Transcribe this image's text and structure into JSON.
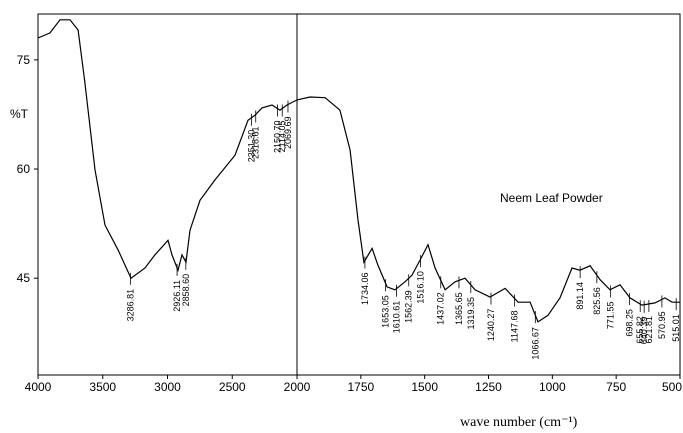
{
  "chart_data": {
    "type": "line",
    "title": "Neem Leaf Powder",
    "y_label": "%T",
    "x_label": "wave number (cm⁻¹)",
    "color": "#000000",
    "xlim": [
      4000,
      500
    ],
    "x_break": 2000,
    "ylim": [
      31.7,
      81.3
    ],
    "xticks": [
      4000,
      3500,
      3000,
      2500,
      2000,
      1750,
      1500,
      1250,
      1000,
      750,
      500
    ],
    "yticks": [
      45,
      60,
      75
    ],
    "x": [
      4000,
      3907,
      3830,
      3753,
      3690,
      3640,
      3560,
      3483,
      3382,
      3282,
      3174,
      3097,
      2996,
      2965,
      2919,
      2888,
      2857,
      2826,
      2749,
      2633,
      2479,
      2378,
      2324,
      2270,
      2193,
      2131,
      2077,
      2000,
      1949,
      1890,
      1832,
      1792,
      1761,
      1738,
      1706,
      1683,
      1647,
      1616,
      1577,
      1550,
      1518,
      1487,
      1459,
      1420,
      1381,
      1342,
      1303,
      1244,
      1185,
      1134,
      1087,
      1056,
      1017,
      970,
      923,
      892,
      852,
      813,
      774,
      735,
      696,
      649,
      598,
      559,
      531,
      500
    ],
    "values": [
      78.0,
      78.7,
      80.5,
      80.5,
      79.1,
      72.2,
      59.9,
      52.3,
      48.9,
      45.0,
      46.4,
      48.2,
      50.2,
      48.2,
      46.1,
      48.2,
      47.2,
      51.6,
      55.7,
      58.5,
      61.9,
      66.7,
      67.4,
      68.4,
      68.8,
      68.1,
      68.8,
      69.5,
      69.9,
      69.8,
      68.1,
      62.6,
      53.0,
      47.2,
      49.1,
      46.8,
      43.8,
      43.4,
      44.5,
      45.4,
      47.5,
      49.6,
      46.4,
      43.4,
      44.5,
      45.0,
      43.4,
      42.4,
      43.6,
      41.7,
      41.7,
      39.0,
      39.9,
      42.3,
      46.4,
      46.1,
      46.7,
      44.8,
      43.4,
      44.1,
      42.3,
      41.3,
      41.6,
      42.3,
      41.7,
      41.7
    ],
    "peaks": [
      3286.81,
      2926.11,
      {
        "value": 2858.6,
        "label": "2858.60"
      },
      {
        "value": 2351.3,
        "label": "2351.30"
      },
      2318.61,
      {
        "value": 2150.7,
        "label": "2150.70"
      },
      2114.05,
      2069.69,
      1734.06,
      1653.05,
      1610.61,
      1562.39,
      {
        "value": 1516.1,
        "label": "1516.10"
      },
      1437.02,
      1365.65,
      1319.35,
      1240.27,
      1147.68,
      1066.67,
      891.14,
      825.56,
      771.55,
      698.25,
      655.82,
      640.39,
      621.81,
      570.95,
      515.01
    ]
  }
}
